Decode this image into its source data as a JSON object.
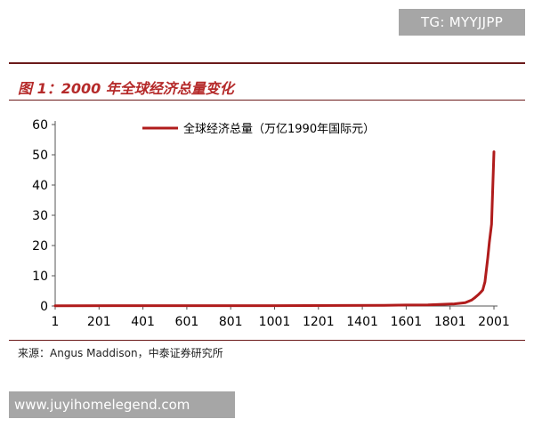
{
  "badge": "TG: MYYJJPP",
  "figure": {
    "title": "图 1：2000 年全球经济总量变化",
    "source": "来源：Angus Maddison，中泰证券研究所"
  },
  "watermark": "www.juyihomelegend.com",
  "colors": {
    "series": "#b01c1c",
    "frame": "#6b1a1a",
    "title": "#b52a2a"
  },
  "chart_data": {
    "type": "line",
    "title": "",
    "xlabel": "",
    "ylabel": "",
    "xlim": [
      1,
      2001
    ],
    "ylim": [
      0,
      60
    ],
    "x_ticks": [
      1,
      201,
      401,
      601,
      801,
      1001,
      1201,
      1401,
      1601,
      1801,
      2001
    ],
    "y_ticks": [
      0,
      10,
      20,
      30,
      40,
      50,
      60
    ],
    "grid": false,
    "legend_position": "top-center",
    "series": [
      {
        "name": "全球经济总量（万亿1990年国际元）",
        "color": "#b01c1c",
        "x": [
          1,
          1000,
          1500,
          1600,
          1700,
          1820,
          1870,
          1900,
          1913,
          1929,
          1940,
          1950,
          1960,
          1973,
          1980,
          1990,
          2001
        ],
        "values": [
          0.1,
          0.12,
          0.25,
          0.33,
          0.37,
          0.7,
          1.1,
          2.0,
          2.7,
          3.7,
          4.5,
          5.3,
          8.0,
          16.0,
          21.0,
          27.0,
          51.0
        ]
      }
    ]
  }
}
